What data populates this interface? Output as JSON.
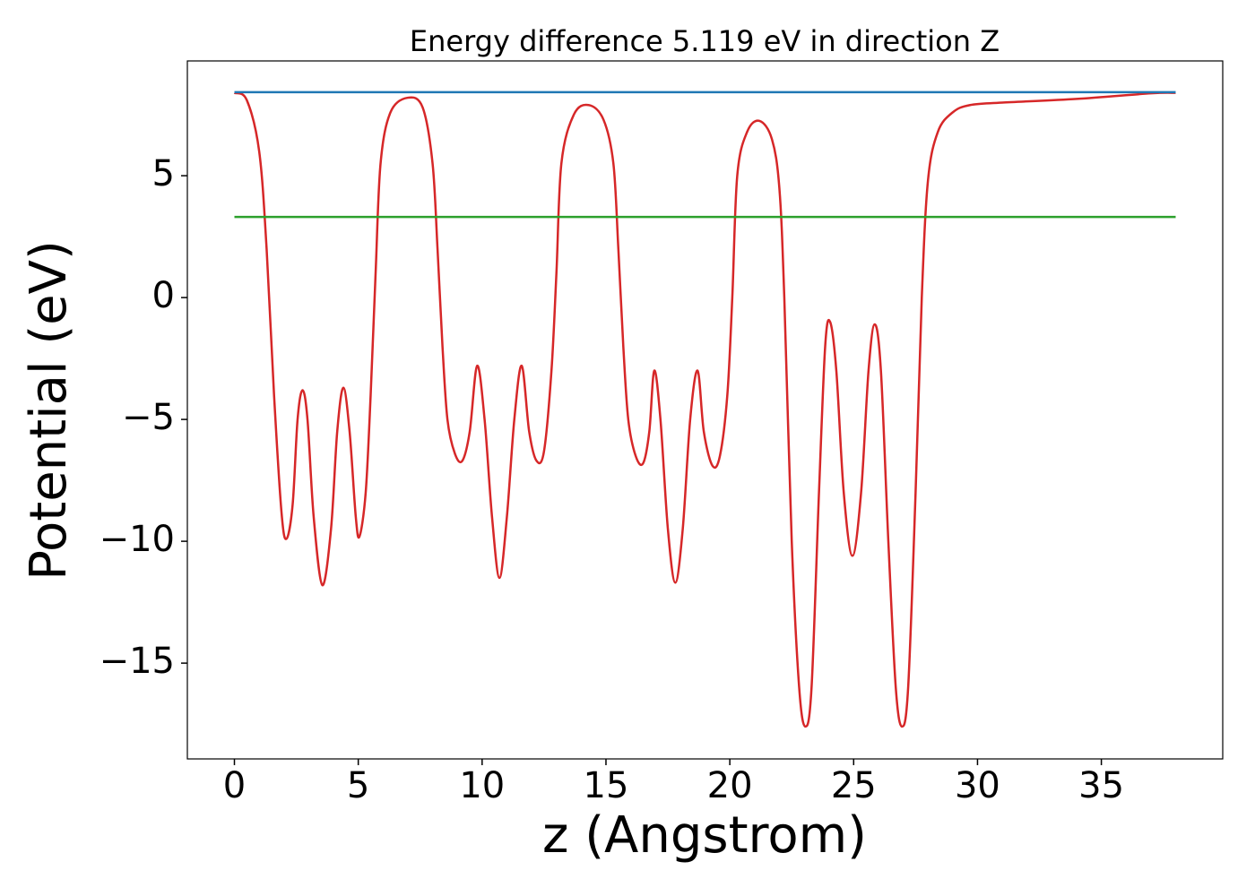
{
  "chart_data": {
    "type": "line",
    "title": "Energy difference 5.119 eV in direction Z",
    "x_label": "z (Angstrom)",
    "y_label": "Potential (eV)",
    "xlim": [
      -1.9,
      39.9
    ],
    "ylim": [
      -18.93,
      9.71
    ],
    "xticks": [
      0,
      5,
      10,
      15,
      20,
      25,
      30,
      35
    ],
    "yticks": [
      {
        "value": -15,
        "label": "−15"
      },
      {
        "value": -10,
        "label": "−10"
      },
      {
        "value": -5,
        "label": "−5"
      },
      0,
      5
    ],
    "series": [
      {
        "color": "#d62728",
        "x": [
          0,
          0.5,
          1.0,
          1.3,
          1.6,
          1.9,
          2.1,
          2.35,
          2.55,
          2.75,
          2.95,
          3.2,
          3.55,
          3.9,
          4.15,
          4.4,
          4.65,
          4.9,
          5.05,
          5.3,
          5.5,
          5.7,
          5.9,
          6.3,
          7.0,
          7.6,
          8.0,
          8.2,
          8.4,
          8.6,
          8.9,
          9.2,
          9.5,
          9.8,
          10.1,
          10.4,
          10.7,
          11.0,
          11.3,
          11.6,
          11.9,
          12.2,
          12.5,
          12.8,
          13.0,
          13.2,
          13.7,
          14.3,
          14.9,
          15.3,
          15.5,
          15.7,
          15.9,
          16.2,
          16.5,
          16.75,
          16.95,
          17.2,
          17.5,
          17.8,
          18.1,
          18.4,
          18.7,
          18.95,
          19.3,
          19.6,
          19.9,
          20.1,
          20.3,
          20.7,
          21.2,
          21.7,
          22.0,
          22.2,
          22.5,
          22.8,
          23.05,
          23.3,
          23.6,
          23.85,
          24.05,
          24.3,
          24.6,
          24.95,
          25.3,
          25.6,
          25.85,
          26.1,
          26.4,
          26.7,
          26.95,
          27.2,
          27.5,
          27.75,
          28.0,
          28.4,
          29.0,
          29.7,
          31,
          34,
          37,
          38
        ],
        "values": [
          8.4,
          8.1,
          6.0,
          2.0,
          -4,
          -8.8,
          -9.9,
          -8.5,
          -5,
          -3.8,
          -5,
          -9,
          -11.8,
          -9.5,
          -5.5,
          -3.7,
          -5.5,
          -9,
          -9.8,
          -8,
          -4,
          1,
          5.5,
          7.6,
          8.2,
          7.8,
          5.5,
          2,
          -2,
          -5,
          -6.4,
          -6.7,
          -5.5,
          -2.8,
          -5,
          -9,
          -11.5,
          -9,
          -5,
          -2.8,
          -5.5,
          -6.7,
          -6.3,
          -3,
          1,
          5.5,
          7.5,
          7.9,
          7.3,
          5.5,
          2,
          -2,
          -5,
          -6.5,
          -6.8,
          -5.5,
          -3,
          -5,
          -9.5,
          -11.7,
          -9.5,
          -5,
          -3,
          -5.5,
          -6.9,
          -6.5,
          -4,
          0,
          5,
          6.8,
          7.25,
          6.5,
          4.5,
          0,
          -10,
          -16,
          -17.6,
          -16,
          -8,
          -2,
          -1,
          -3,
          -8,
          -10.6,
          -8,
          -3,
          -1.1,
          -3,
          -10,
          -16,
          -17.6,
          -16,
          -8,
          0,
          4.8,
          6.8,
          7.6,
          7.9,
          8.0,
          8.15,
          8.38,
          8.4
        ]
      },
      {
        "color": "#1f77b4",
        "x": [
          0,
          38
        ],
        "values": [
          8.43,
          8.43
        ]
      },
      {
        "color": "#2ca02c",
        "x": [
          0,
          38
        ],
        "values": [
          3.31,
          3.31
        ]
      }
    ]
  }
}
